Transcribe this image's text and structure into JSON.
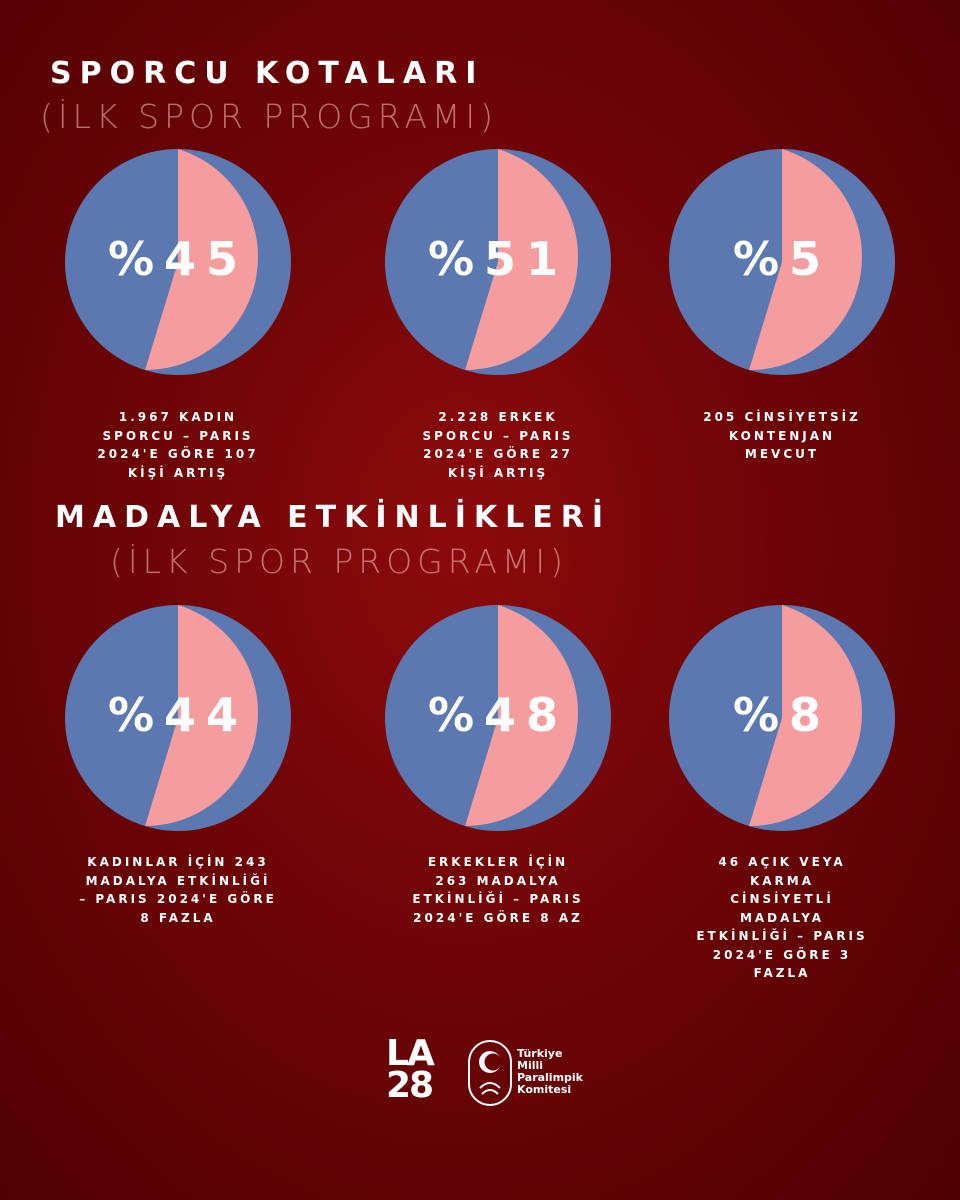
{
  "sections": [
    {
      "title": "SPORCU KOTALARI",
      "subtitle": "(İLK SPOR PROGRAMI)",
      "items": [
        {
          "percent": "%45",
          "caption_lines": [
            "1.967 KADIN",
            "SPORCU – PARIS",
            "2024'E GÖRE 107",
            "KİŞİ ARTIŞ"
          ]
        },
        {
          "percent": "%51",
          "caption_lines": [
            "2.228 ERKEK",
            "SPORCU – PARIS",
            "2024'E GÖRE 27",
            "KİŞİ ARTIŞ"
          ]
        },
        {
          "percent": "%5",
          "caption_lines": [
            "205 CİNSİYETSİZ",
            "KONTENJAN",
            "MEVCUT"
          ]
        }
      ]
    },
    {
      "title": "MADALYA ETKİNLİKLERİ",
      "subtitle": "(İLK SPOR PROGRAMI)",
      "items": [
        {
          "percent": "%44",
          "caption_lines": [
            "KADINLAR İÇİN 243",
            "MADALYA ETKİNLİĞİ",
            "– PARIS 2024'E GÖRE",
            "8 FAZLA"
          ]
        },
        {
          "percent": "%48",
          "caption_lines": [
            "ERKEKLER İÇİN",
            "263 MADALYA",
            "ETKİNLİĞİ – PARIS",
            "2024'E GÖRE 8 AZ"
          ]
        },
        {
          "percent": "%8",
          "caption_lines": [
            "46 AÇIK VEYA",
            "KARMA",
            "CİNSİYETLİ",
            "MADALYA",
            "ETKİNLİĞİ – PARIS",
            "2024'E GÖRE 3",
            "FAZLA"
          ]
        }
      ]
    }
  ],
  "footer": {
    "la_top": "LA",
    "la_bottom": "28",
    "committee_lines": [
      "Türkiye",
      "Milli",
      "Paralimpik",
      "Komitesi"
    ]
  }
}
